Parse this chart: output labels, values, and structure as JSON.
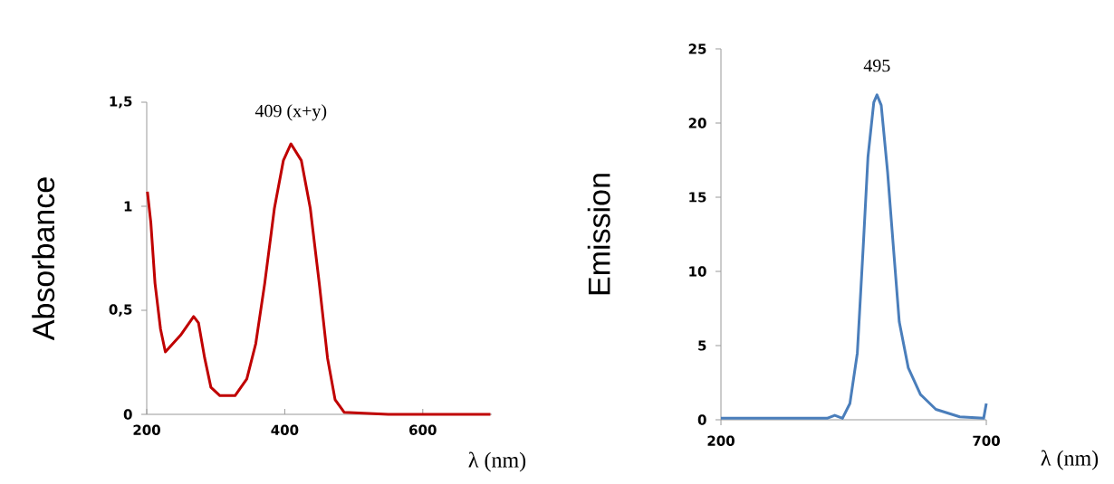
{
  "chart_data": [
    {
      "type": "line",
      "xlabel": "λ (nm)",
      "ylabel": "Absorbance",
      "color": "#c00000",
      "xlim": [
        200,
        700
      ],
      "ylim": [
        0,
        1.5
      ],
      "xticks": [
        200,
        400,
        600
      ],
      "yticks": [
        0,
        {
          "value": 0.5,
          "label": "0,5"
        },
        1,
        {
          "value": 1.5,
          "label": "1,5"
        }
      ],
      "x": [
        201,
        206,
        212,
        220,
        227,
        249,
        268,
        275,
        284,
        293,
        306,
        328,
        345,
        358,
        371,
        385,
        398,
        409,
        424,
        437,
        450,
        462,
        473,
        486,
        550,
        620,
        698
      ],
      "values": [
        1.07,
        0.92,
        0.63,
        0.41,
        0.3,
        0.38,
        0.47,
        0.44,
        0.27,
        0.13,
        0.09,
        0.09,
        0.17,
        0.34,
        0.63,
        0.99,
        1.22,
        1.3,
        1.22,
        0.99,
        0.63,
        0.27,
        0.07,
        0.01,
        0,
        0,
        0
      ],
      "annotations": [
        {
          "text": "409 (x+y)",
          "x": 409,
          "y": 1.3
        }
      ]
    },
    {
      "type": "line",
      "xlabel": "λ (nm)",
      "ylabel": "Emission",
      "color": "#4a7ebb",
      "xlim": [
        200,
        700
      ],
      "ylim": [
        0,
        25
      ],
      "xticks": [
        200,
        700
      ],
      "yticks": [
        0,
        5,
        10,
        15,
        20,
        25
      ],
      "x": [
        200,
        300,
        400,
        414.5,
        429,
        443,
        457,
        468,
        477,
        488,
        494,
        502,
        514,
        525,
        536,
        553,
        576,
        605,
        650,
        695,
        700
      ],
      "values": [
        0.1,
        0.1,
        0.1,
        0.3,
        0.1,
        1.1,
        4.5,
        11.6,
        17.7,
        21.4,
        21.9,
        21.2,
        16.7,
        11.6,
        6.6,
        3.5,
        1.7,
        0.7,
        0.2,
        0.1,
        1.1
      ],
      "annotations": [
        {
          "text": "495",
          "x": 494,
          "y": 21.9
        }
      ]
    }
  ]
}
